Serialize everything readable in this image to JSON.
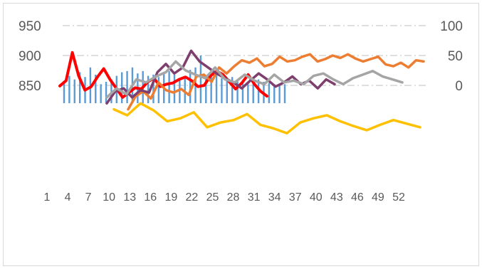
{
  "chart_data": {
    "type": "combo",
    "title": "",
    "xlabel": "",
    "ylabel": "",
    "y_left_ticks": [
      "950",
      "900",
      "850"
    ],
    "y_right_ticks": [
      "100",
      "50",
      "0"
    ],
    "y_left_range": [
      850,
      950
    ],
    "y_right_range": [
      0,
      100
    ],
    "x_tick_labels": [
      "1",
      "4",
      "7",
      "10",
      "13",
      "16",
      "19",
      "22",
      "25",
      "28",
      "31",
      "34",
      "37",
      "40",
      "43",
      "46",
      "49",
      "52"
    ],
    "grid": "horizontal dash-dot",
    "legend_position": "bottom",
    "colors": {
      "bars": "#5b9bd5",
      "red": "#ff0000",
      "orange": "#ed7d31",
      "purple": "#7e3f6e",
      "gray": "#a5a5a5",
      "yellow": "#ffc000",
      "grid": "#bfbfbf"
    },
    "note": "Lower portion of the chart is heavily corrupted/obscured; only the upper range (850–950 left axis, 0–100 right axis) is readable.",
    "series": [
      {
        "kind": "bar",
        "axis": "left",
        "color": "#5b9bd5",
        "values": [
          855,
          866,
          860,
          872,
          864,
          880,
          868,
          852,
          856,
          860,
          866,
          872,
          874,
          880,
          870,
          874,
          866,
          868,
          864,
          870,
          874,
          868,
          860,
          866,
          876,
          880,
          900,
          866,
          868,
          870,
          862,
          860,
          864,
          858,
          856,
          852,
          858,
          860,
          856,
          854,
          852,
          850,
          852
        ]
      },
      {
        "kind": "line",
        "axis": "left",
        "color": "#ff0000",
        "values": [
          849,
          858,
          905,
          866,
          842,
          848,
          864,
          878,
          860,
          845,
          830,
          838,
          846,
          844,
          856,
          862,
          848,
          852,
          854,
          860,
          864,
          858,
          848,
          850,
          866,
          874,
          868,
          856,
          844,
          854,
          868,
          852,
          840,
          832
        ]
      },
      {
        "kind": "line",
        "axis": "right",
        "color": "#ed7d31",
        "values": [
          -40,
          -18,
          -10,
          -22,
          5,
          -8,
          -12,
          -6,
          -16,
          15,
          18,
          6,
          30,
          20,
          32,
          42,
          38,
          45,
          32,
          36,
          48,
          40,
          42,
          48,
          52,
          40,
          44,
          50,
          46,
          52,
          45,
          40,
          44,
          48,
          35,
          32,
          38,
          30,
          42,
          40
        ]
      },
      {
        "kind": "line",
        "axis": "right",
        "color": "#7e3f6e",
        "values": [
          -30,
          -10,
          -5,
          -20,
          -8,
          -12,
          22,
          36,
          20,
          30,
          58,
          40,
          30,
          20,
          12,
          5,
          -5,
          8,
          20,
          10,
          -2,
          5,
          15,
          2,
          8,
          -5,
          10,
          2
        ]
      },
      {
        "kind": "line",
        "axis": "right",
        "color": "#a5a5a5",
        "values": [
          -20,
          -5,
          -15,
          10,
          5,
          15,
          22,
          40,
          25,
          18,
          12,
          30,
          10,
          5,
          18,
          8,
          2,
          18,
          5,
          8,
          2,
          16,
          20,
          10,
          2,
          12,
          18,
          24,
          15,
          10,
          5
        ]
      },
      {
        "kind": "line",
        "axis": "right",
        "color": "#ffc000",
        "values": [
          -40,
          -50,
          -30,
          -42,
          -60,
          -55,
          -45,
          -70,
          -62,
          -58,
          -48,
          -66,
          -72,
          -80,
          -62,
          -55,
          -50,
          -60,
          -68,
          -75,
          -66,
          -58,
          -64,
          -70
        ]
      }
    ]
  }
}
